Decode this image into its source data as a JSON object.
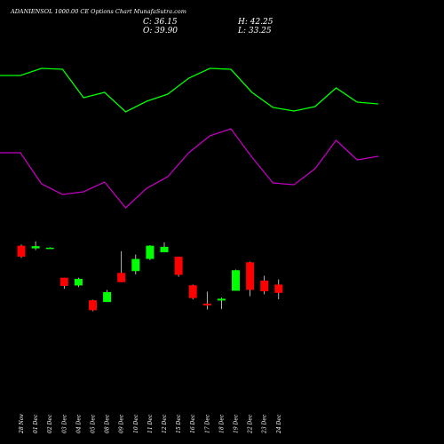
{
  "header": {
    "title": "ADANIENSOL 1000.00 CE Options  Chart MunafaSutra.com",
    "close": "C: 36.15",
    "open": "O: 39.90",
    "high": "H: 42.25",
    "low": "L: 33.25"
  },
  "colors": {
    "background": "#000000",
    "line_upper": "#00ff00",
    "line_lower": "#bf00bf",
    "candle_up": "#00ff00",
    "candle_down": "#ff0000",
    "text": "#ffffff"
  },
  "chart_data": {
    "type": "candlestick",
    "categories": [
      "28 Nov",
      "01 Dec",
      "02 Dec",
      "03 Dec",
      "04 Dec",
      "05 Dec",
      "08 Dec",
      "09 Dec",
      "10 Dec",
      "11 Dec",
      "12 Dec",
      "15 Dec",
      "16 Dec",
      "17 Dec",
      "18 Dec",
      "19 Dec",
      "22 Dec",
      "23 Dec",
      "24 Dec"
    ],
    "candles": [
      {
        "open": 57.5,
        "high": 58.0,
        "low": 52.0,
        "close": 52.5
      },
      {
        "open": 56.3,
        "high": 59.5,
        "low": 55.5,
        "close": 57.3
      },
      {
        "open": 56.6,
        "high": 56.8,
        "low": 56.3,
        "close": 56.6
      },
      {
        "open": 43.0,
        "high": 43.0,
        "low": 38.0,
        "close": 39.3
      },
      {
        "open": 39.5,
        "high": 43.0,
        "low": 38.8,
        "close": 42.5
      },
      {
        "open": 32.8,
        "high": 33.0,
        "low": 27.9,
        "close": 28.3
      },
      {
        "open": 32.0,
        "high": 37.5,
        "low": 32.0,
        "close": 36.5
      },
      {
        "open": 45.2,
        "high": 55.0,
        "low": 41.0,
        "close": 41.0
      },
      {
        "open": 46.0,
        "high": 53.5,
        "low": 44.5,
        "close": 51.5
      },
      {
        "open": 51.5,
        "high": 57.7,
        "low": 51.0,
        "close": 57.5
      },
      {
        "open": 54.5,
        "high": 59.0,
        "low": 54.5,
        "close": 57.0
      },
      {
        "open": 52.5,
        "high": 52.5,
        "low": 43.5,
        "close": 44.3
      },
      {
        "open": 39.6,
        "high": 39.9,
        "low": 33.2,
        "close": 33.8
      },
      {
        "open": 31.3,
        "high": 36.7,
        "low": 28.6,
        "close": 30.5
      },
      {
        "open": 32.7,
        "high": 34.0,
        "low": 28.8,
        "close": 33.5
      },
      {
        "open": 37.1,
        "high": 46.7,
        "low": 37.1,
        "close": 46.4
      },
      {
        "open": 50.0,
        "high": 50.3,
        "low": 34.6,
        "close": 37.5
      },
      {
        "open": 41.7,
        "high": 43.9,
        "low": 35.5,
        "close": 36.9
      },
      {
        "open": 39.9,
        "high": 42.25,
        "low": 33.25,
        "close": 36.15
      }
    ],
    "upper_line": [
      85,
      85,
      77,
      78,
      110,
      104,
      126,
      114,
      106,
      88,
      77,
      78,
      104,
      121,
      125,
      120,
      99,
      115,
      117
    ],
    "lower_line": [
      172,
      172,
      207,
      219,
      216,
      205,
      234,
      212,
      199,
      172,
      153,
      145,
      177,
      206,
      208,
      190,
      158,
      180,
      176
    ],
    "price_range": [
      20,
      65
    ]
  }
}
